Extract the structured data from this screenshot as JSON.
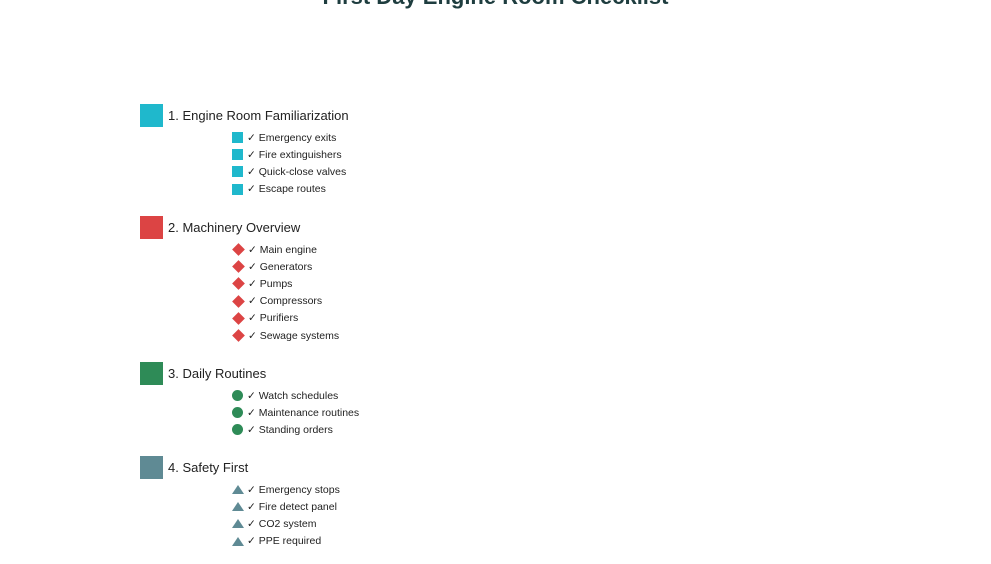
{
  "title": "First Day Engine Room Checklist",
  "check_glyph": "✓",
  "sections": [
    {
      "label": "1. Engine Room Familiarization",
      "color": "#1fb8cc",
      "marker": "square",
      "items": [
        "Emergency exits",
        "Fire extinguishers",
        "Quick-close valves",
        "Escape routes"
      ]
    },
    {
      "label": "2. Machinery Overview",
      "color": "#dc4444",
      "marker": "diamond",
      "items": [
        "Main engine",
        "Generators",
        "Pumps",
        "Compressors",
        "Purifiers",
        "Sewage systems"
      ]
    },
    {
      "label": "3. Daily Routines",
      "color": "#2e8b57",
      "marker": "circle",
      "items": [
        "Watch schedules",
        "Maintenance routines",
        "Standing orders"
      ]
    },
    {
      "label": "4. Safety First",
      "color": "#5f8a94",
      "marker": "triangle",
      "items": [
        "Emergency stops",
        "Fire detect panel",
        "CO2 system",
        "PPE required"
      ]
    }
  ]
}
